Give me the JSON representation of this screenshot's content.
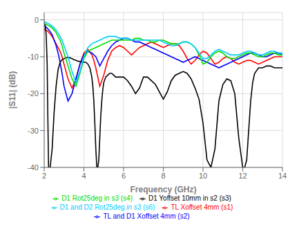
{
  "chart_data": {
    "type": "line",
    "xlabel": "Frequency (GHz)",
    "ylabel": "|S11| (dB)",
    "xlim": [
      2,
      14
    ],
    "ylim": [
      -40,
      2
    ],
    "xticks": [
      2,
      4,
      6,
      8,
      10,
      12,
      14
    ],
    "yticks": [
      0,
      -10,
      -20,
      -30,
      -40
    ],
    "grid": true,
    "legend": "bottom",
    "series": [
      {
        "name": "TL Xoffset 4mm (s1)",
        "color": "#ff0000",
        "x": [
          2.0,
          2.1,
          2.2,
          2.3,
          2.4,
          2.5,
          2.6,
          2.7,
          2.8,
          2.9,
          3.0,
          3.2,
          3.4,
          3.6,
          3.8,
          4.0,
          4.2,
          4.4,
          4.5,
          4.6,
          4.8,
          5.0,
          5.2,
          5.4,
          5.6,
          5.8,
          6.0,
          6.2,
          6.4,
          6.6,
          6.8,
          7.0,
          7.2,
          7.4,
          7.6,
          7.8,
          8.0,
          8.2,
          8.4,
          8.6,
          8.8,
          9.0,
          9.2,
          9.4,
          9.6,
          9.8,
          10.0,
          10.2,
          10.4,
          10.6,
          10.8,
          11.0,
          11.2,
          11.4,
          11.6,
          11.8,
          12.0,
          12.2,
          12.4,
          12.6,
          12.8,
          13.0,
          13.2,
          13.4,
          13.6,
          13.8,
          14.0
        ],
        "values": [
          -2.5,
          -2.8,
          -3.2,
          -3.8,
          -4.5,
          -5.5,
          -6.5,
          -7.5,
          -8.5,
          -10.0,
          -12.0,
          -16.0,
          -18.5,
          -16.0,
          -12.0,
          -9.0,
          -8.0,
          -9.5,
          -11.0,
          -13.0,
          -18.0,
          -15.0,
          -11.0,
          -8.5,
          -7.5,
          -7.0,
          -7.5,
          -8.5,
          -9.5,
          -8.5,
          -7.5,
          -7.0,
          -6.5,
          -6.0,
          -6.5,
          -7.0,
          -7.5,
          -7.0,
          -6.5,
          -6.5,
          -7.0,
          -8.5,
          -10.5,
          -12.0,
          -11.0,
          -9.5,
          -8.5,
          -9.0,
          -10.5,
          -12.0,
          -11.5,
          -10.5,
          -10.0,
          -10.5,
          -11.5,
          -12.0,
          -11.5,
          -11.0,
          -11.0,
          -11.5,
          -12.0,
          -11.5,
          -11.0,
          -10.5,
          -10.0,
          -10.0,
          -10.0
        ]
      },
      {
        "name": "TL and D1 Xoffset 4mm (s2)",
        "color": "#0000ff",
        "x": [
          2.0,
          2.1,
          2.2,
          2.3,
          2.4,
          2.5,
          2.6,
          2.7,
          2.8,
          2.9,
          3.0,
          3.2,
          3.4,
          3.6,
          3.8,
          4.0,
          4.2,
          4.4,
          4.6,
          4.8,
          5.0,
          5.2,
          5.4,
          5.6,
          5.8,
          6.0,
          6.2,
          6.4,
          6.6,
          6.8,
          7.0,
          7.2,
          7.4,
          7.6,
          7.8,
          8.0,
          8.2,
          8.4,
          8.6,
          8.8,
          9.0,
          9.2,
          9.4,
          9.6,
          9.8,
          10.0,
          10.2,
          10.4,
          10.6,
          10.8,
          11.0,
          11.2,
          11.4,
          11.6,
          11.8,
          12.0,
          12.2,
          12.4,
          12.6,
          12.8,
          13.0,
          13.2,
          13.4,
          13.6,
          13.8,
          14.0
        ],
        "values": [
          -1.5,
          -2.0,
          -2.5,
          -3.2,
          -4.0,
          -5.5,
          -7.0,
          -9.0,
          -11.5,
          -14.5,
          -18.0,
          -22.0,
          -20.0,
          -16.0,
          -12.0,
          -9.5,
          -8.5,
          -9.0,
          -10.0,
          -12.5,
          -10.5,
          -8.5,
          -7.0,
          -6.0,
          -5.5,
          -5.0,
          -5.0,
          -5.5,
          -6.0,
          -6.0,
          -6.5,
          -7.0,
          -7.5,
          -8.0,
          -8.5,
          -9.0,
          -9.5,
          -10.0,
          -10.5,
          -11.0,
          -11.5,
          -11.0,
          -10.5,
          -10.0,
          -10.5,
          -11.0,
          -11.5,
          -12.0,
          -12.5,
          -13.0,
          -12.5,
          -12.0,
          -11.5,
          -11.0,
          -10.5,
          -10.0,
          -9.5,
          -9.0,
          -9.0,
          -9.5,
          -10.0,
          -10.0,
          -9.5,
          -9.0,
          -9.0,
          -9.5
        ]
      },
      {
        "name": "D1 Yoffset 10mm in s2 (s3)",
        "color": "#000000",
        "x": [
          2.0,
          2.05,
          2.1,
          2.15,
          2.18,
          2.22,
          2.3,
          2.4,
          2.5,
          2.6,
          2.7,
          2.8,
          2.9,
          3.0,
          3.1,
          3.2,
          3.3,
          3.4,
          3.5,
          3.6,
          3.7,
          3.8,
          3.9,
          4.0,
          4.1,
          4.2,
          4.3,
          4.4,
          4.45,
          4.5,
          4.55,
          4.6,
          4.65,
          4.7,
          4.75,
          4.8,
          4.85,
          4.9,
          4.95,
          5.0,
          5.1,
          5.2,
          5.3,
          5.4,
          5.5,
          5.6,
          5.7,
          5.8,
          5.9,
          6.0,
          6.2,
          6.4,
          6.6,
          6.8,
          7.0,
          7.2,
          7.4,
          7.6,
          7.8,
          8.0,
          8.2,
          8.4,
          8.6,
          8.8,
          9.0,
          9.2,
          9.4,
          9.6,
          9.8,
          10.0,
          10.2,
          10.4,
          10.6,
          10.8,
          11.0,
          11.2,
          11.4,
          11.6,
          11.8,
          12.0,
          12.1,
          12.2,
          12.3,
          12.4,
          12.5,
          12.6,
          12.8,
          13.0,
          13.2,
          13.4,
          13.6,
          13.8,
          14.0
        ],
        "values": [
          -0.8,
          -1.5,
          -4.0,
          -12.0,
          -25.0,
          -40.0,
          -40.0,
          -35.0,
          -25.0,
          -18.0,
          -13.5,
          -11.5,
          -10.8,
          -10.5,
          -10.3,
          -10.2,
          -10.3,
          -10.5,
          -10.8,
          -11.0,
          -11.2,
          -11.3,
          -11.5,
          -11.5,
          -11.5,
          -12.0,
          -13.0,
          -15.5,
          -18.0,
          -22.0,
          -28.0,
          -35.0,
          -40.0,
          -40.0,
          -38.0,
          -32.0,
          -26.0,
          -22.0,
          -19.0,
          -17.0,
          -15.5,
          -15.0,
          -14.5,
          -14.5,
          -15.0,
          -15.5,
          -15.5,
          -15.5,
          -15.5,
          -15.5,
          -16.5,
          -18.0,
          -20.0,
          -18.5,
          -15.5,
          -15.5,
          -16.5,
          -17.5,
          -19.5,
          -21.5,
          -19.5,
          -16.5,
          -15.0,
          -14.5,
          -14.0,
          -14.5,
          -16.0,
          -18.5,
          -21.5,
          -28.0,
          -38.0,
          -40.0,
          -35.0,
          -22.0,
          -17.5,
          -16.0,
          -16.5,
          -20.0,
          -32.0,
          -40.0,
          -40.0,
          -38.0,
          -30.0,
          -22.0,
          -17.0,
          -14.5,
          -13.0,
          -13.0,
          -12.5,
          -12.5,
          -13.0,
          -13.0,
          -13.0
        ]
      },
      {
        "name": "D1 Rot25deg in s3 (s4)",
        "color": "#00dd00",
        "x": [
          2.0,
          2.1,
          2.2,
          2.3,
          2.4,
          2.5,
          2.6,
          2.7,
          2.8,
          2.9,
          3.0,
          3.2,
          3.4,
          3.6,
          3.8,
          4.0,
          4.2,
          4.4,
          4.6,
          4.8,
          5.0,
          5.2,
          5.4,
          5.6,
          5.8,
          6.0,
          6.2,
          6.4,
          6.6,
          6.8,
          7.0,
          7.2,
          7.4,
          7.6,
          7.8,
          8.0,
          8.2,
          8.4,
          8.6,
          8.8,
          9.0,
          9.2,
          9.4,
          9.6,
          9.8,
          10.0,
          10.2,
          10.4,
          10.6,
          10.8,
          11.0,
          11.2,
          11.4,
          11.6,
          11.8,
          12.0,
          12.2,
          12.4,
          12.6,
          12.8,
          13.0,
          13.2,
          13.4,
          13.6,
          13.8,
          14.0
        ],
        "values": [
          -1.0,
          -1.2,
          -1.5,
          -1.8,
          -2.2,
          -2.8,
          -3.5,
          -4.5,
          -5.5,
          -7.0,
          -9.0,
          -12.5,
          -16.0,
          -18.0,
          -14.5,
          -10.5,
          -8.5,
          -8.0,
          -7.5,
          -7.0,
          -6.5,
          -6.0,
          -5.5,
          -5.5,
          -5.5,
          -5.5,
          -5.5,
          -5.5,
          -5.0,
          -5.0,
          -5.5,
          -5.5,
          -6.0,
          -6.0,
          -5.5,
          -5.5,
          -6.0,
          -6.5,
          -6.5,
          -6.5,
          -6.0,
          -6.0,
          -6.5,
          -7.5,
          -9.5,
          -12.0,
          -11.5,
          -10.0,
          -9.0,
          -8.5,
          -9.0,
          -10.0,
          -10.5,
          -10.5,
          -10.0,
          -9.5,
          -9.0,
          -9.0,
          -9.5,
          -10.0,
          -10.0,
          -9.5,
          -9.0,
          -9.0,
          -9.5,
          -9.5
        ]
      },
      {
        "name": "D1 and D2 Rot25deg in s3 (s6)",
        "color": "#00ccff",
        "x": [
          2.0,
          2.1,
          2.2,
          2.3,
          2.4,
          2.5,
          2.6,
          2.7,
          2.8,
          2.9,
          3.0,
          3.2,
          3.4,
          3.6,
          3.8,
          4.0,
          4.2,
          4.4,
          4.6,
          4.8,
          5.0,
          5.2,
          5.4,
          5.6,
          5.8,
          6.0,
          6.2,
          6.4,
          6.6,
          6.8,
          7.0,
          7.2,
          7.4,
          7.6,
          7.8,
          8.0,
          8.2,
          8.4,
          8.6,
          8.8,
          9.0,
          9.2,
          9.4,
          9.6,
          9.8,
          10.0,
          10.2,
          10.4,
          10.6,
          10.8,
          11.0,
          11.2,
          11.4,
          11.6,
          11.8,
          12.0,
          12.2,
          12.4,
          12.6,
          12.8,
          13.0,
          13.2,
          13.4,
          13.6,
          13.8,
          14.0
        ],
        "values": [
          -0.5,
          -0.7,
          -1.0,
          -1.3,
          -1.7,
          -2.2,
          -2.8,
          -3.6,
          -4.5,
          -5.5,
          -7.0,
          -10.0,
          -14.0,
          -17.0,
          -14.0,
          -10.0,
          -7.5,
          -6.5,
          -6.0,
          -5.5,
          -5.0,
          -4.5,
          -4.5,
          -4.5,
          -5.0,
          -5.0,
          -5.0,
          -5.5,
          -5.5,
          -5.5,
          -5.5,
          -5.5,
          -5.5,
          -5.5,
          -5.5,
          -6.0,
          -6.5,
          -7.0,
          -7.0,
          -6.5,
          -6.0,
          -6.0,
          -6.5,
          -7.5,
          -9.0,
          -10.5,
          -10.5,
          -9.5,
          -8.5,
          -8.0,
          -8.5,
          -9.0,
          -9.5,
          -9.5,
          -9.5,
          -9.0,
          -8.5,
          -8.5,
          -9.0,
          -9.5,
          -9.5,
          -9.0,
          -8.5,
          -8.5,
          -9.0,
          -9.0
        ]
      }
    ]
  }
}
